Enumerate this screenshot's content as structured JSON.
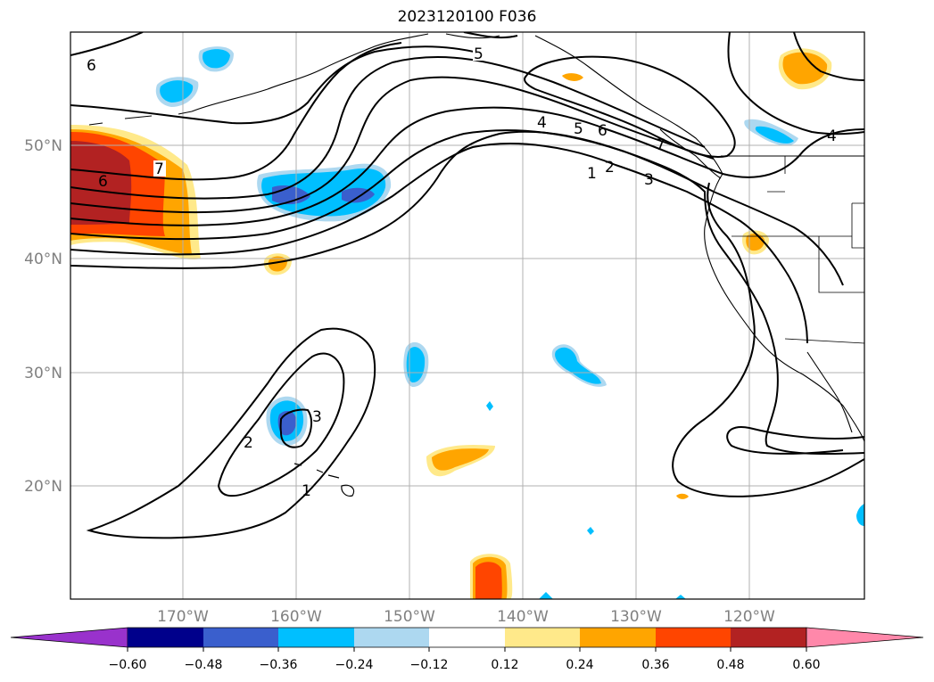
{
  "title": "2023120100 F036",
  "colors": {
    "coast": "#000000",
    "grid": "#b0b0b0",
    "contour": "#000000",
    "tick_label": "#808080"
  },
  "lat_labels": [
    "50°N",
    "40°N",
    "30°N",
    "20°N"
  ],
  "lon_labels": [
    "170°W",
    "160°W",
    "150°W",
    "140°W",
    "130°W",
    "120°W"
  ],
  "contour_labels": [
    "6",
    "7",
    "6",
    "5",
    "4",
    "5",
    "6",
    "7",
    "1",
    "2",
    "3",
    "4",
    "2",
    "3",
    "1"
  ],
  "colorbar": {
    "ticks": [
      "−0.60",
      "−0.48",
      "−0.36",
      "−0.24",
      "−0.12",
      "0.12",
      "0.24",
      "0.36",
      "0.48",
      "0.60"
    ],
    "segment_colors": [
      "#9932cc",
      "#00008b",
      "#3a5fcd",
      "#00bfff",
      "#add8f0",
      "#ffffff",
      "#ffe98a",
      "#ffa500",
      "#ff4500",
      "#b22222",
      "#ff88aa"
    ]
  },
  "shading_colors": {
    "neg_strong": "#3a5fcd",
    "neg_mid": "#00bfff",
    "neg_light": "#add8f0",
    "pos_light": "#ffe98a",
    "pos_mid": "#ffa500",
    "pos_strong": "#ff4500",
    "pos_very": "#b22222"
  }
}
